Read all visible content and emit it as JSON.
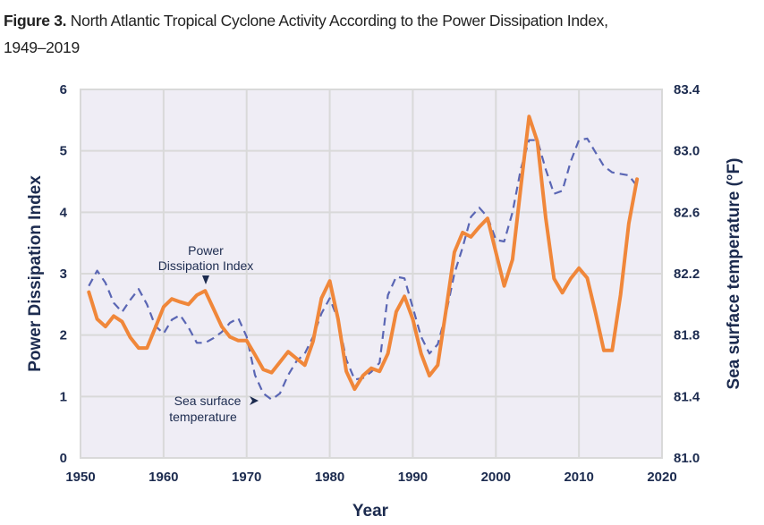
{
  "figure": {
    "label": "Figure 3.",
    "title": "North Atlantic Tropical Cyclone Activity According to the Power Dissipation Index,",
    "title_line2": "1949–2019"
  },
  "chart_data": {
    "type": "line",
    "xlabel": "Year",
    "ylabel": "Power Dissipation Index",
    "y2label": "Sea surface temperature (°F)",
    "xlim": [
      1950,
      2020
    ],
    "ylim": [
      0,
      6
    ],
    "y2lim": [
      81.0,
      83.4
    ],
    "xticks": [
      "1950",
      "1960",
      "1970",
      "1980",
      "1990",
      "2000",
      "2010",
      "2020"
    ],
    "yticks": [
      "0",
      "1",
      "2",
      "3",
      "4",
      "5",
      "6"
    ],
    "y2ticks": [
      "81.0",
      "81.4",
      "81.8",
      "82.2",
      "82.6",
      "83.0",
      "83.4"
    ],
    "grid": true,
    "colors": {
      "pdi": "#f0873a",
      "sst": "#5a66b4",
      "plot_bg": "#efedf5",
      "grid": "#d9d9d9",
      "text": "#1c2b4f"
    },
    "annotations": {
      "pdi_label": [
        "Power",
        "Dissipation Index"
      ],
      "sst_label": [
        "Sea surface",
        "temperature"
      ]
    },
    "x": [
      1951,
      1952,
      1953,
      1954,
      1955,
      1956,
      1957,
      1958,
      1959,
      1960,
      1961,
      1962,
      1963,
      1964,
      1965,
      1966,
      1967,
      1968,
      1969,
      1970,
      1971,
      1972,
      1973,
      1974,
      1975,
      1976,
      1977,
      1978,
      1979,
      1980,
      1981,
      1982,
      1983,
      1984,
      1985,
      1986,
      1987,
      1988,
      1989,
      1990,
      1991,
      1992,
      1993,
      1994,
      1995,
      1996,
      1997,
      1998,
      1999,
      2000,
      2001,
      2002,
      2003,
      2004,
      2005,
      2006,
      2007,
      2008,
      2009,
      2010,
      2011,
      2012,
      2013,
      2014,
      2015,
      2016,
      2017
    ],
    "series": [
      {
        "name": "Power Dissipation Index",
        "axis": "left",
        "style": "solid",
        "values": [
          2.7,
          2.26,
          2.14,
          2.31,
          2.22,
          1.96,
          1.79,
          1.79,
          2.12,
          2.46,
          2.59,
          2.54,
          2.5,
          2.65,
          2.72,
          2.43,
          2.14,
          1.97,
          1.91,
          1.91,
          1.68,
          1.44,
          1.39,
          1.56,
          1.73,
          1.62,
          1.51,
          1.9,
          2.6,
          2.88,
          2.26,
          1.41,
          1.12,
          1.34,
          1.46,
          1.41,
          1.7,
          2.38,
          2.63,
          2.26,
          1.7,
          1.34,
          1.51,
          2.41,
          3.35,
          3.67,
          3.6,
          3.76,
          3.9,
          3.35,
          2.8,
          3.23,
          4.4,
          5.56,
          5.15,
          3.91,
          2.92,
          2.69,
          2.92,
          3.09,
          2.93,
          2.36,
          1.75,
          1.75,
          2.65,
          3.82,
          4.54
        ]
      },
      {
        "name": "Sea surface temperature",
        "axis": "right",
        "style": "dashed",
        "values": [
          82.12,
          82.22,
          82.14,
          82.01,
          81.95,
          82.03,
          82.1,
          82.0,
          81.86,
          81.81,
          81.9,
          81.93,
          81.85,
          81.75,
          81.75,
          81.78,
          81.82,
          81.88,
          81.91,
          81.79,
          81.54,
          81.42,
          81.38,
          81.42,
          81.54,
          81.63,
          81.68,
          81.79,
          81.94,
          82.04,
          81.9,
          81.64,
          81.51,
          81.52,
          81.56,
          81.62,
          82.06,
          82.18,
          82.17,
          81.98,
          81.79,
          81.68,
          81.74,
          81.94,
          82.2,
          82.37,
          82.57,
          82.63,
          82.57,
          82.42,
          82.41,
          82.6,
          82.88,
          83.07,
          83.07,
          82.88,
          82.72,
          82.74,
          82.93,
          83.07,
          83.08,
          82.99,
          82.9,
          82.86,
          82.85,
          82.84,
          82.77
        ]
      }
    ]
  }
}
